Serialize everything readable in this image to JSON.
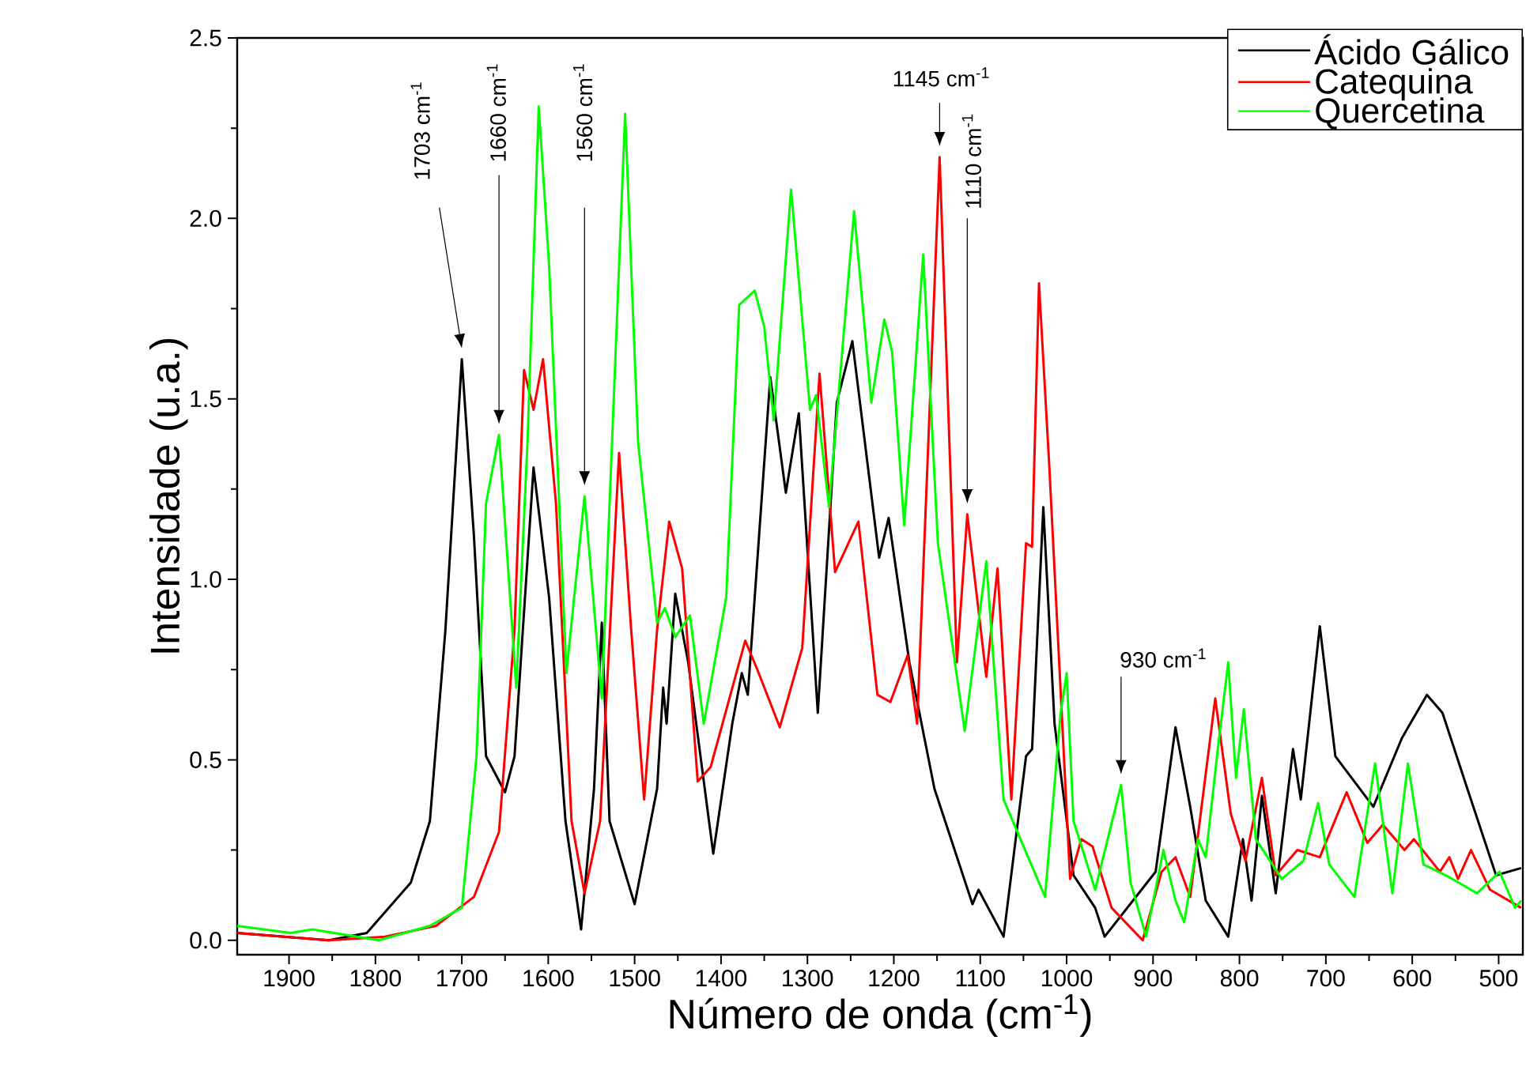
{
  "chart_data": {
    "type": "line",
    "xlabel": "Número de onda (cm$^{-1}$)",
    "ylabel": "Intensidade (u.a.)",
    "xlim": [
      1960,
      472
    ],
    "ylim": [
      -0.04,
      2.5
    ],
    "xticks": [
      1900,
      1800,
      1700,
      1600,
      1500,
      1400,
      1300,
      1200,
      1100,
      1000,
      900,
      800,
      700,
      600,
      500
    ],
    "yticks": [
      {
        "value": 0,
        "label": "0.0"
      },
      0.5,
      {
        "value": 1,
        "label": "1.0"
      },
      1.5,
      {
        "value": 2,
        "label": "2.0"
      },
      2.5
    ],
    "legend": "top right",
    "line_style": "solid",
    "marker": "none",
    "annotations": [
      "1703 cm$^{-1}$",
      "1660 cm$^{-1}$",
      "1560 cm$^{-1}$",
      "1145 cm$^{-1}$",
      "1110 cm$^{-1}$",
      "930 cm$^{-1}$"
    ],
    "series": [
      {
        "name": "Ácido Gálico",
        "color": "#000000",
        "x": [
          1960,
          1854,
          1810,
          1759,
          1737,
          1719,
          1700,
          1686,
          1672,
          1650,
          1639,
          1617,
          1599,
          1580,
          1562,
          1547,
          1538,
          1529,
          1500,
          1474,
          1467,
          1463,
          1453,
          1438,
          1409,
          1387,
          1376,
          1369,
          1343,
          1325,
          1310,
          1288,
          1266,
          1248,
          1217,
          1206,
          1182,
          1153,
          1109,
          1102,
          1073,
          1047,
          1040,
          1027,
          1014,
          992,
          967,
          956,
          897,
          874,
          857,
          839,
          813,
          796,
          786,
          774,
          758,
          738,
          729,
          707,
          689,
          667,
          645,
          612,
          583,
          565,
          539,
          503,
          474
        ],
        "values": [
          0.02,
          0.0,
          0.02,
          0.16,
          0.33,
          0.86,
          1.61,
          1.12,
          0.51,
          0.41,
          0.51,
          1.31,
          0.95,
          0.33,
          0.03,
          0.42,
          0.88,
          0.33,
          0.1,
          0.42,
          0.7,
          0.6,
          0.96,
          0.77,
          0.24,
          0.6,
          0.74,
          0.68,
          1.56,
          1.24,
          1.46,
          0.63,
          1.49,
          1.66,
          1.06,
          1.17,
          0.77,
          0.42,
          0.1,
          0.14,
          0.01,
          0.51,
          0.53,
          1.2,
          0.6,
          0.18,
          0.09,
          0.01,
          0.19,
          0.59,
          0.37,
          0.11,
          0.01,
          0.28,
          0.11,
          0.4,
          0.13,
          0.53,
          0.39,
          0.87,
          0.51,
          0.44,
          0.37,
          0.56,
          0.68,
          0.63,
          0.44,
          0.18,
          0.2
        ]
      },
      {
        "name": "Catequina",
        "color": "#ff0000",
        "x": [
          1960,
          1854,
          1789,
          1730,
          1686,
          1657,
          1639,
          1628,
          1617,
          1606,
          1591,
          1573,
          1558,
          1540,
          1518,
          1504,
          1489,
          1474,
          1460,
          1445,
          1427,
          1412,
          1372,
          1358,
          1332,
          1306,
          1286,
          1268,
          1241,
          1219,
          1204,
          1184,
          1173,
          1147,
          1127,
          1115,
          1093,
          1080,
          1064,
          1047,
          1040,
          1032,
          1020,
          996,
          983,
          970,
          948,
          912,
          890,
          874,
          857,
          828,
          810,
          793,
          774,
          758,
          733,
          707,
          676,
          652,
          634,
          609,
          598,
          568,
          557,
          547,
          532,
          510,
          474
        ],
        "values": [
          0.02,
          0.0,
          0.01,
          0.04,
          0.12,
          0.3,
          0.86,
          1.58,
          1.47,
          1.61,
          1.21,
          0.33,
          0.13,
          0.33,
          1.35,
          0.86,
          0.39,
          0.86,
          1.16,
          1.03,
          0.44,
          0.48,
          0.83,
          0.75,
          0.59,
          0.81,
          1.57,
          1.02,
          1.16,
          0.68,
          0.66,
          0.79,
          0.6,
          2.17,
          0.77,
          1.18,
          0.73,
          1.03,
          0.39,
          1.1,
          1.09,
          1.82,
          1.31,
          0.17,
          0.28,
          0.26,
          0.09,
          0.0,
          0.19,
          0.23,
          0.12,
          0.67,
          0.35,
          0.22,
          0.45,
          0.18,
          0.25,
          0.23,
          0.41,
          0.27,
          0.32,
          0.25,
          0.28,
          0.19,
          0.23,
          0.17,
          0.25,
          0.14,
          0.09
        ]
      },
      {
        "name": "Quercetina",
        "color": "#00ff00",
        "x": [
          1960,
          1898,
          1873,
          1796,
          1737,
          1700,
          1683,
          1672,
          1657,
          1637,
          1624,
          1611,
          1599,
          1579,
          1558,
          1538,
          1511,
          1496,
          1474,
          1465,
          1453,
          1436,
          1420,
          1394,
          1379,
          1361,
          1350,
          1339,
          1319,
          1297,
          1290,
          1275,
          1246,
          1226,
          1211,
          1202,
          1188,
          1166,
          1149,
          1118,
          1093,
          1073,
          1025,
          1007,
          1000,
          992,
          967,
          937,
          926,
          908,
          888,
          874,
          864,
          848,
          839,
          825,
          813,
          804,
          795,
          781,
          751,
          726,
          709,
          696,
          667,
          643,
          623,
          605,
          587,
          561,
          525,
          499,
          481,
          474
        ],
        "values": [
          0.04,
          0.02,
          0.03,
          0.0,
          0.04,
          0.09,
          0.51,
          1.21,
          1.4,
          0.7,
          1.38,
          2.31,
          1.87,
          0.74,
          1.23,
          0.67,
          2.29,
          1.38,
          0.88,
          0.92,
          0.84,
          0.9,
          0.6,
          0.95,
          1.76,
          1.8,
          1.7,
          1.44,
          2.08,
          1.47,
          1.51,
          1.2,
          2.02,
          1.49,
          1.72,
          1.63,
          1.15,
          1.9,
          1.1,
          0.58,
          1.05,
          0.39,
          0.12,
          0.63,
          0.74,
          0.33,
          0.14,
          0.43,
          0.16,
          0.01,
          0.25,
          0.11,
          0.05,
          0.28,
          0.23,
          0.53,
          0.77,
          0.45,
          0.64,
          0.28,
          0.17,
          0.22,
          0.38,
          0.21,
          0.12,
          0.49,
          0.13,
          0.49,
          0.21,
          0.18,
          0.13,
          0.19,
          0.09,
          0.11
        ]
      }
    ]
  }
}
